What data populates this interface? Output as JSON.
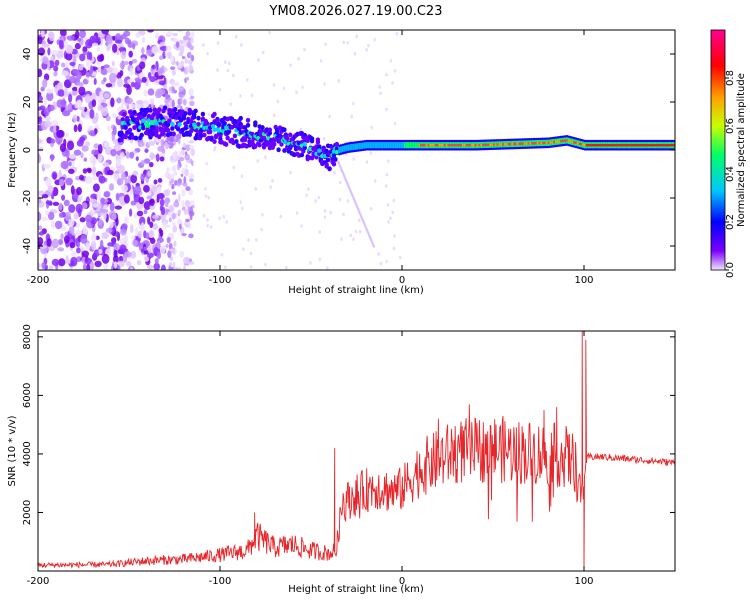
{
  "title": "YM08.2026.027.19.00.C23",
  "chart_data": [
    {
      "type": "heatmap",
      "name": "spectrogram",
      "xlabel": "Height of straight line (km)",
      "ylabel": "Frequency (Hz)",
      "xlim": [
        -200,
        150
      ],
      "ylim": [
        -50,
        50
      ],
      "xticks": [
        -200,
        -100,
        0,
        100
      ],
      "xtick_labels": [
        "-200",
        "-100",
        "0",
        "100"
      ],
      "yticks": [
        -40,
        -20,
        0,
        20,
        40
      ],
      "ytick_labels": [
        "-40",
        "-20",
        "0",
        "20",
        "40"
      ],
      "colorbar": {
        "label": "Normalized spectral amplitude",
        "range": [
          0,
          1
        ],
        "ticks": [
          0.0,
          0.2,
          0.4,
          0.6,
          0.8
        ],
        "tick_labels": [
          "0.0",
          "0.2",
          "0.4",
          "0.6",
          "0.8"
        ],
        "colors": [
          "#f2e6ff",
          "#7b00ff",
          "#0000ff",
          "#00c8ff",
          "#00ff66",
          "#c8ff00",
          "#ffa000",
          "#ff0000",
          "#ff0090"
        ]
      },
      "ridge": {
        "x": [
          -155,
          -140,
          -125,
          -110,
          -95,
          -85,
          -75,
          -65,
          -55,
          -45,
          -40,
          -35,
          -30,
          -20,
          -10,
          0,
          20,
          40,
          60,
          80,
          90,
          95,
          100,
          150
        ],
        "y": [
          10,
          11,
          12,
          10,
          8,
          7,
          6,
          4,
          2,
          -1,
          -3,
          0,
          1,
          2,
          2,
          2,
          2,
          2,
          2.5,
          3,
          4,
          3,
          2,
          2
        ]
      },
      "noise_region_x": [
        -200,
        -140
      ],
      "stripe_x": [
        -130,
        -115
      ]
    },
    {
      "type": "line",
      "name": "snr",
      "xlabel": "Height of straight line (km)",
      "ylabel": "SNR (10 * v/v)",
      "xlim": [
        -200,
        150
      ],
      "ylim": [
        0,
        8200
      ],
      "xticks": [
        -200,
        -100,
        0,
        100
      ],
      "xtick_labels": [
        "-200",
        "-100",
        "0",
        "100"
      ],
      "yticks": [
        2000,
        4000,
        6000,
        8000
      ],
      "ytick_labels": [
        "2000",
        "4000",
        "6000",
        "8000"
      ],
      "line_color": "#e8262a",
      "envelope": {
        "x": [
          -200,
          -160,
          -140,
          -120,
          -100,
          -85,
          -80,
          -70,
          -60,
          -50,
          -40,
          -36,
          -33,
          -25,
          -15,
          -5,
          0,
          10,
          20,
          30,
          40,
          50,
          60,
          70,
          80,
          90,
          95,
          98,
          100,
          102,
          104,
          110,
          120,
          130,
          150
        ],
        "y": [
          200,
          220,
          350,
          400,
          550,
          700,
          1200,
          800,
          900,
          700,
          600,
          700,
          2300,
          2600,
          2900,
          2700,
          2800,
          3500,
          3800,
          4100,
          4100,
          4200,
          4100,
          4050,
          4000,
          3900,
          3700,
          2500,
          3200,
          3900,
          3900,
          3900,
          3850,
          3800,
          3700
        ]
      },
      "spikes": [
        {
          "x": -81,
          "y": 2000
        },
        {
          "x": -37,
          "y": 4200
        },
        {
          "x": 20,
          "y": 5200
        },
        {
          "x": 37,
          "y": 5700
        },
        {
          "x": 78,
          "y": 5500
        },
        {
          "x": 85,
          "y": 5600
        },
        {
          "x": 99,
          "y": 8200
        },
        {
          "x": 101,
          "y": 7900
        },
        {
          "x": 100,
          "y": 100
        }
      ]
    }
  ]
}
